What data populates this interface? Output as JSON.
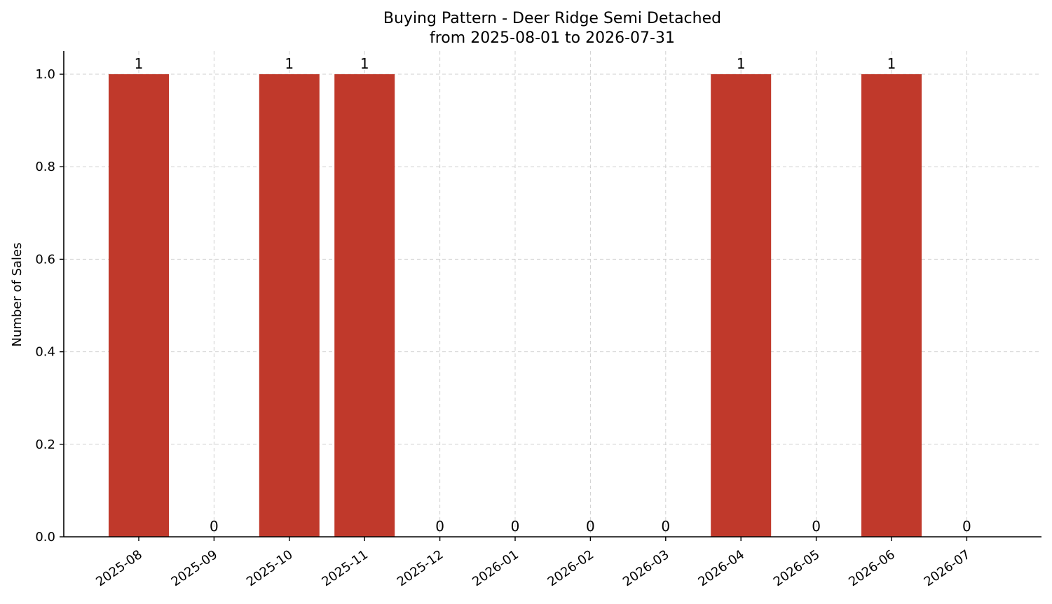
{
  "chart_data": {
    "type": "bar",
    "title": "Buying Pattern - Deer Ridge Semi Detached",
    "subtitle": "from 2025-08-01 to 2026-07-31",
    "xlabel": "",
    "ylabel": "Number of Sales",
    "categories": [
      "2025-08",
      "2025-09",
      "2025-10",
      "2025-11",
      "2025-12",
      "2026-01",
      "2026-02",
      "2026-03",
      "2026-04",
      "2026-05",
      "2026-06",
      "2026-07"
    ],
    "values": [
      1,
      0,
      1,
      1,
      0,
      0,
      0,
      0,
      1,
      0,
      1,
      0
    ],
    "data_labels": [
      "1",
      "0",
      "1",
      "1",
      "0",
      "0",
      "0",
      "0",
      "1",
      "0",
      "1",
      "0"
    ],
    "ylim": [
      0,
      1.05
    ],
    "yticks": [
      0.0,
      0.2,
      0.4,
      0.6,
      0.8,
      1.0
    ],
    "ytick_labels": [
      "0.0",
      "0.2",
      "0.4",
      "0.6",
      "0.8",
      "1.0"
    ],
    "grid": true,
    "legend": "none",
    "colors": {
      "bar": "#c0392b"
    }
  }
}
